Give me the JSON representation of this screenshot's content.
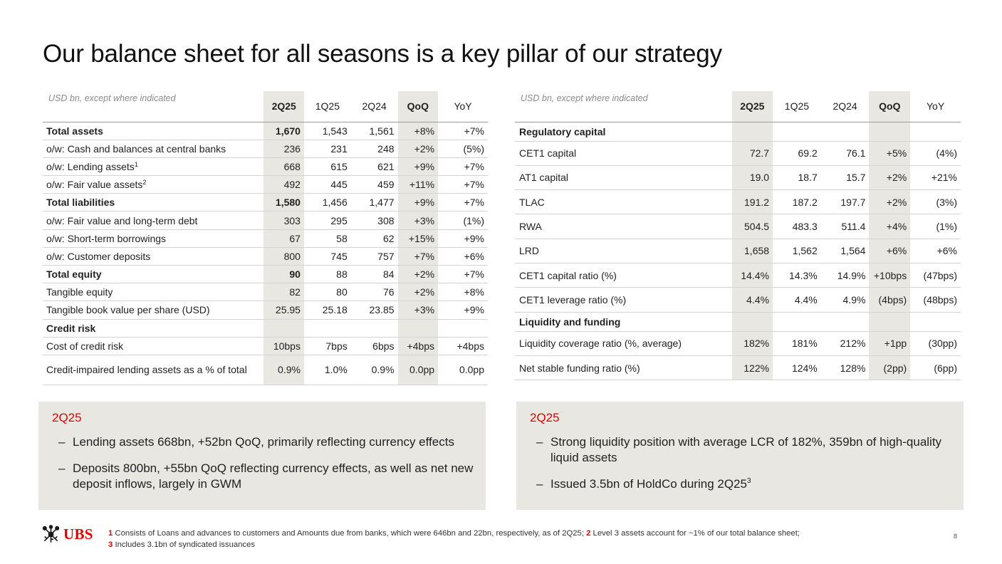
{
  "title": "Our balance sheet for all seasons is a key pillar of our strategy",
  "left_table": {
    "unit": "USD bn, except where indicated",
    "headers": [
      "2Q25",
      "1Q25",
      "2Q24",
      "QoQ",
      "YoY"
    ],
    "rows": [
      {
        "label": "Total assets",
        "values": [
          "1,670",
          "1,543",
          "1,561",
          "+8%",
          "+7%"
        ]
      },
      {
        "label": "o/w: Cash and balances at central banks",
        "values": [
          "236",
          "231",
          "248",
          "+2%",
          "(5%)"
        ]
      },
      {
        "label": "o/w: Lending assets",
        "sup": "1",
        "values": [
          "668",
          "615",
          "621",
          "+9%",
          "+7%"
        ]
      },
      {
        "label": "o/w: Fair value assets",
        "sup": "2",
        "values": [
          "492",
          "445",
          "459",
          "+11%",
          "+7%"
        ]
      },
      {
        "label": "Total liabilities",
        "values": [
          "1,580",
          "1,456",
          "1,477",
          "+9%",
          "+7%"
        ]
      },
      {
        "label": "o/w: Fair value and long-term debt",
        "values": [
          "303",
          "295",
          "308",
          "+3%",
          "(1%)"
        ]
      },
      {
        "label": "o/w: Short-term borrowings",
        "values": [
          "67",
          "58",
          "62",
          "+15%",
          "+9%"
        ]
      },
      {
        "label": "o/w: Customer deposits",
        "values": [
          "800",
          "745",
          "757",
          "+7%",
          "+6%"
        ]
      },
      {
        "label": "Total equity",
        "values": [
          "90",
          "88",
          "84",
          "+2%",
          "+7%"
        ]
      },
      {
        "label": "Tangible equity",
        "values": [
          "82",
          "80",
          "76",
          "+2%",
          "+8%"
        ]
      },
      {
        "label": "Tangible book value per share (USD)",
        "values": [
          "25.95",
          "25.18",
          "23.85",
          "+3%",
          "+9%"
        ]
      },
      {
        "label": "Credit risk"
      },
      {
        "label": "Cost of credit risk",
        "values": [
          "10bps",
          "7bps",
          "6bps",
          "+4bps",
          "+4bps"
        ]
      },
      {
        "label": "Credit-impaired lending assets as a % of total",
        "values": [
          "0.9%",
          "1.0%",
          "0.9%",
          "0.0pp",
          "0.0pp"
        ]
      }
    ]
  },
  "right_table": {
    "unit": "USD bn, except where indicated",
    "headers": [
      "2Q25",
      "1Q25",
      "2Q24",
      "QoQ",
      "YoY"
    ],
    "rows": [
      {
        "label": "Regulatory capital"
      },
      {
        "label": "CET1 capital",
        "values": [
          "72.7",
          "69.2",
          "76.1",
          "+5%",
          "(4%)"
        ]
      },
      {
        "label": "AT1 capital",
        "values": [
          "19.0",
          "18.7",
          "15.7",
          "+2%",
          "+21%"
        ]
      },
      {
        "label": "TLAC",
        "values": [
          "191.2",
          "187.2",
          "197.7",
          "+2%",
          "(3%)"
        ]
      },
      {
        "label": "RWA",
        "values": [
          "504.5",
          "483.3",
          "511.4",
          "+4%",
          "(1%)"
        ]
      },
      {
        "label": "LRD",
        "values": [
          "1,658",
          "1,562",
          "1,564",
          "+6%",
          "+6%"
        ]
      },
      {
        "label": "CET1 capital ratio (%)",
        "values": [
          "14.4%",
          "14.3%",
          "14.9%",
          "+10bps",
          "(47bps)"
        ]
      },
      {
        "label": "CET1 leverage ratio (%)",
        "values": [
          "4.4%",
          "4.4%",
          "4.9%",
          "(4bps)",
          "(48bps)"
        ]
      },
      {
        "label": "Liquidity and funding"
      },
      {
        "label": "Liquidity coverage ratio (%, average)",
        "values": [
          "182%",
          "181%",
          "212%",
          "+1pp",
          "(30pp)"
        ]
      },
      {
        "label": "Net stable funding ratio (%)",
        "values": [
          "122%",
          "124%",
          "128%",
          "(2pp)",
          "(6pp)"
        ]
      }
    ]
  },
  "panel_left": {
    "heading": "2Q25",
    "bullets": [
      {
        "text": "Lending assets 668bn, +52bn QoQ, primarily reflecting currency effects"
      },
      {
        "text": "Deposits 800bn, +55bn QoQ reflecting currency effects, as well as net new deposit inflows, largely in GWM"
      }
    ]
  },
  "panel_right": {
    "heading": "2Q25",
    "bullets": [
      {
        "text": "Strong liquidity position with average LCR of 182%, 359bn of high-quality liquid assets"
      },
      {
        "text": "Issued 3.5bn of HoldCo during 2Q25",
        "sup": "3"
      }
    ]
  },
  "bullet_dash": "–",
  "logo": {
    "text": "UBS",
    "icon": "ubs-keys-icon"
  },
  "footnotes": {
    "n1": "1",
    "t1": "Consists of Loans and advances to customers and Amounts due from banks, which were 646bn and 22bn, respectively, as of 2Q25;",
    "n2": "2",
    "t2": "Level 3 assets account for ~1% of our total balance sheet;",
    "n3": "3",
    "t3": "Includes 3.1bn of syndicated issuances"
  },
  "page_number": "8",
  "colors": {
    "accent": "#e60000",
    "panel": "#e8e7e2",
    "highlight": "#e8e7e2"
  }
}
